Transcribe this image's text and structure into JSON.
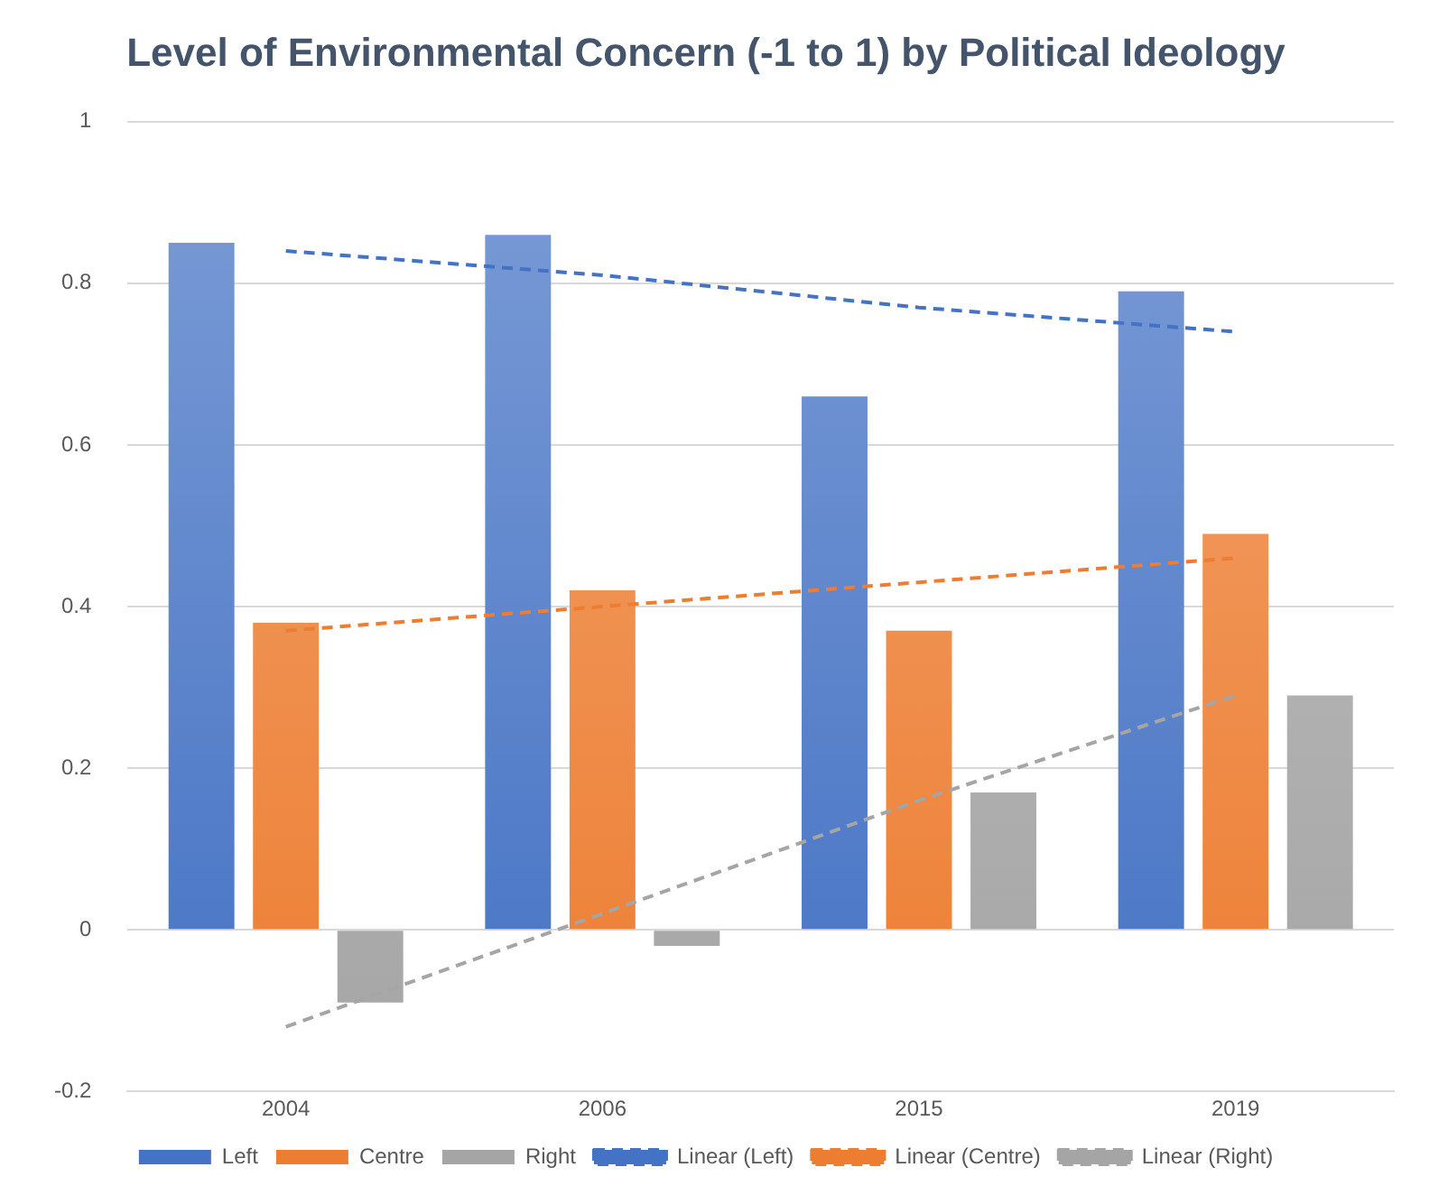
{
  "chart_data": {
    "type": "bar",
    "title": "Level of Environmental Concern (-1 to 1) by Political Ideology",
    "categories": [
      "2004",
      "2006",
      "2015",
      "2019"
    ],
    "series": [
      {
        "name": "Left",
        "color": "#4472c4",
        "values": [
          0.85,
          0.86,
          0.66,
          0.79
        ]
      },
      {
        "name": "Centre",
        "color": "#ed7d31",
        "values": [
          0.38,
          0.42,
          0.37,
          0.49
        ]
      },
      {
        "name": "Right",
        "color": "#a5a5a5",
        "values": [
          -0.09,
          -0.02,
          0.17,
          0.29
        ]
      },
      {
        "name": "Linear (Left)",
        "type": "line",
        "color": "#4472c4",
        "line_style": "dashed",
        "values": [
          0.84,
          0.81,
          0.77,
          0.74
        ]
      },
      {
        "name": "Linear (Centre)",
        "type": "line",
        "color": "#ed7d31",
        "line_style": "dashed",
        "values": [
          0.37,
          0.4,
          0.43,
          0.46
        ]
      },
      {
        "name": "Linear (Right)",
        "type": "line",
        "color": "#a5a5a5",
        "line_style": "dashed",
        "values": [
          -0.12,
          0.02,
          0.16,
          0.29
        ]
      }
    ],
    "ylim": [
      -0.2,
      1
    ],
    "yticks": [
      -0.2,
      0,
      0.2,
      0.4,
      0.6,
      0.8,
      1
    ],
    "grid": "y",
    "legend": "bottom",
    "marker": "none"
  }
}
